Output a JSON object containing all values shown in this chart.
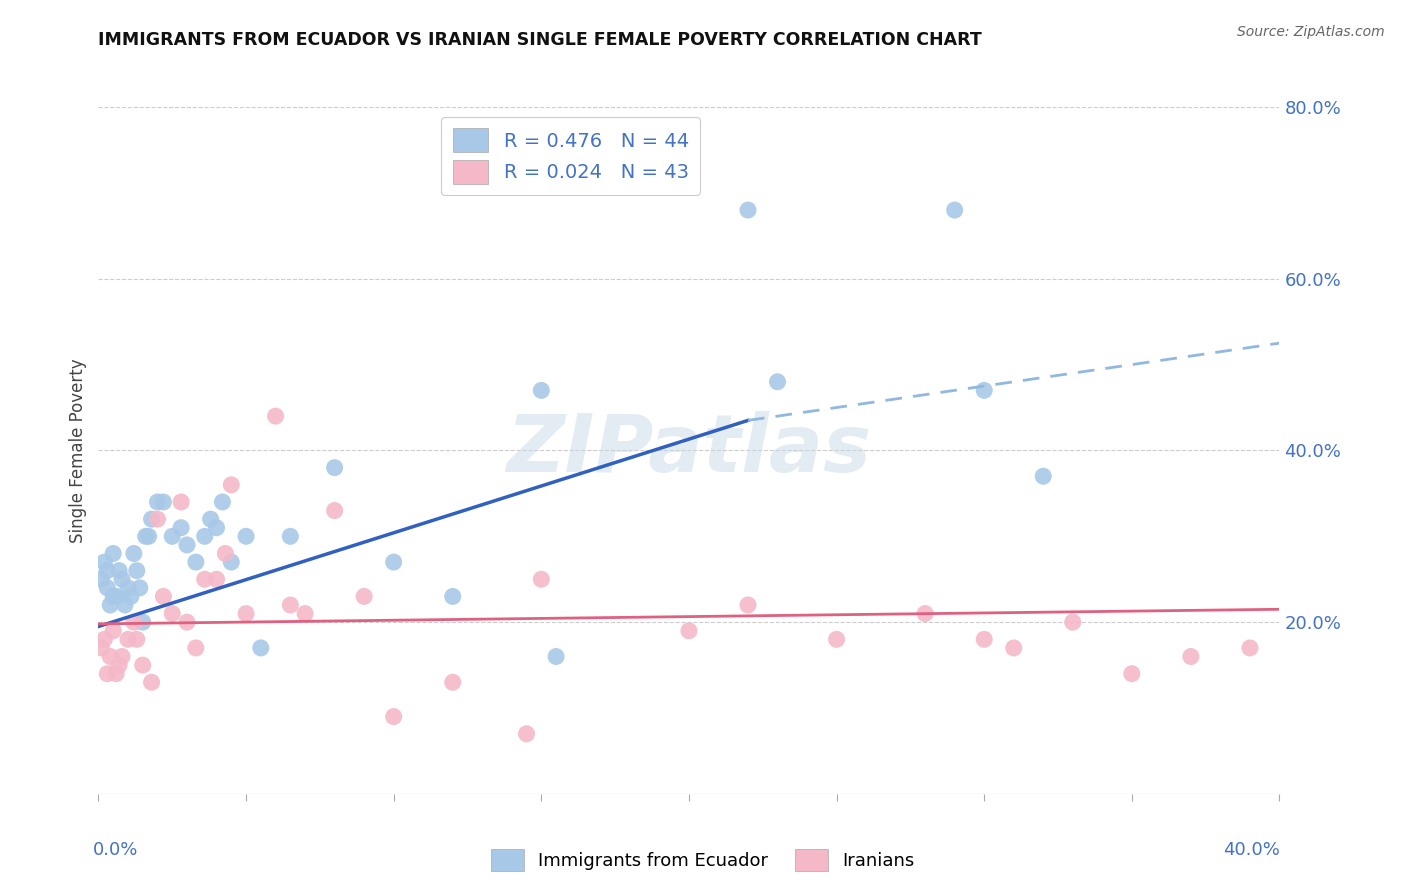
{
  "title": "IMMIGRANTS FROM ECUADOR VS IRANIAN SINGLE FEMALE POVERTY CORRELATION CHART",
  "source": "Source: ZipAtlas.com",
  "ylabel": "Single Female Poverty",
  "legend_label1": "Immigrants from Ecuador",
  "legend_label2": "Iranians",
  "watermark": "ZIPatlas",
  "ecuador_color": "#a8c8e8",
  "iranian_color": "#f4b8c8",
  "ecuador_line_color": "#3060c0",
  "iranian_line_color": "#e06080",
  "dashed_line_color": "#90b8e0",
  "background_color": "#ffffff",
  "grid_color": "#cccccc",
  "xlim": [
    0.0,
    0.4
  ],
  "ylim": [
    0.0,
    0.8
  ],
  "ecuador_x": [
    0.001,
    0.002,
    0.003,
    0.003,
    0.004,
    0.005,
    0.005,
    0.006,
    0.007,
    0.008,
    0.009,
    0.01,
    0.011,
    0.012,
    0.013,
    0.014,
    0.015,
    0.016,
    0.017,
    0.018,
    0.02,
    0.022,
    0.025,
    0.028,
    0.03,
    0.033,
    0.036,
    0.038,
    0.04,
    0.042,
    0.045,
    0.05,
    0.055,
    0.065,
    0.08,
    0.1,
    0.12,
    0.15,
    0.155,
    0.22,
    0.23,
    0.29,
    0.3,
    0.32
  ],
  "ecuador_y": [
    0.25,
    0.27,
    0.24,
    0.26,
    0.22,
    0.28,
    0.23,
    0.23,
    0.26,
    0.25,
    0.22,
    0.24,
    0.23,
    0.28,
    0.26,
    0.24,
    0.2,
    0.3,
    0.3,
    0.32,
    0.34,
    0.34,
    0.3,
    0.31,
    0.29,
    0.27,
    0.3,
    0.32,
    0.31,
    0.34,
    0.27,
    0.3,
    0.17,
    0.3,
    0.38,
    0.27,
    0.23,
    0.47,
    0.16,
    0.68,
    0.48,
    0.68,
    0.47,
    0.37
  ],
  "iranian_x": [
    0.001,
    0.002,
    0.003,
    0.004,
    0.005,
    0.006,
    0.007,
    0.008,
    0.01,
    0.012,
    0.013,
    0.015,
    0.018,
    0.02,
    0.022,
    0.025,
    0.028,
    0.03,
    0.033,
    0.036,
    0.04,
    0.043,
    0.045,
    0.05,
    0.06,
    0.065,
    0.07,
    0.08,
    0.09,
    0.1,
    0.12,
    0.145,
    0.15,
    0.2,
    0.22,
    0.25,
    0.28,
    0.3,
    0.31,
    0.33,
    0.35,
    0.37,
    0.39
  ],
  "iranian_y": [
    0.17,
    0.18,
    0.14,
    0.16,
    0.19,
    0.14,
    0.15,
    0.16,
    0.18,
    0.2,
    0.18,
    0.15,
    0.13,
    0.32,
    0.23,
    0.21,
    0.34,
    0.2,
    0.17,
    0.25,
    0.25,
    0.28,
    0.36,
    0.21,
    0.44,
    0.22,
    0.21,
    0.33,
    0.23,
    0.09,
    0.13,
    0.07,
    0.25,
    0.19,
    0.22,
    0.18,
    0.21,
    0.18,
    0.17,
    0.2,
    0.14,
    0.16,
    0.17
  ],
  "blue_line_x0": 0.0,
  "blue_line_y0": 0.195,
  "blue_line_x1": 0.22,
  "blue_line_y1": 0.435,
  "blue_line_x2": 0.4,
  "blue_line_y2": 0.525,
  "pink_line_x0": 0.0,
  "pink_line_y0": 0.198,
  "pink_line_x1": 0.4,
  "pink_line_y1": 0.215
}
